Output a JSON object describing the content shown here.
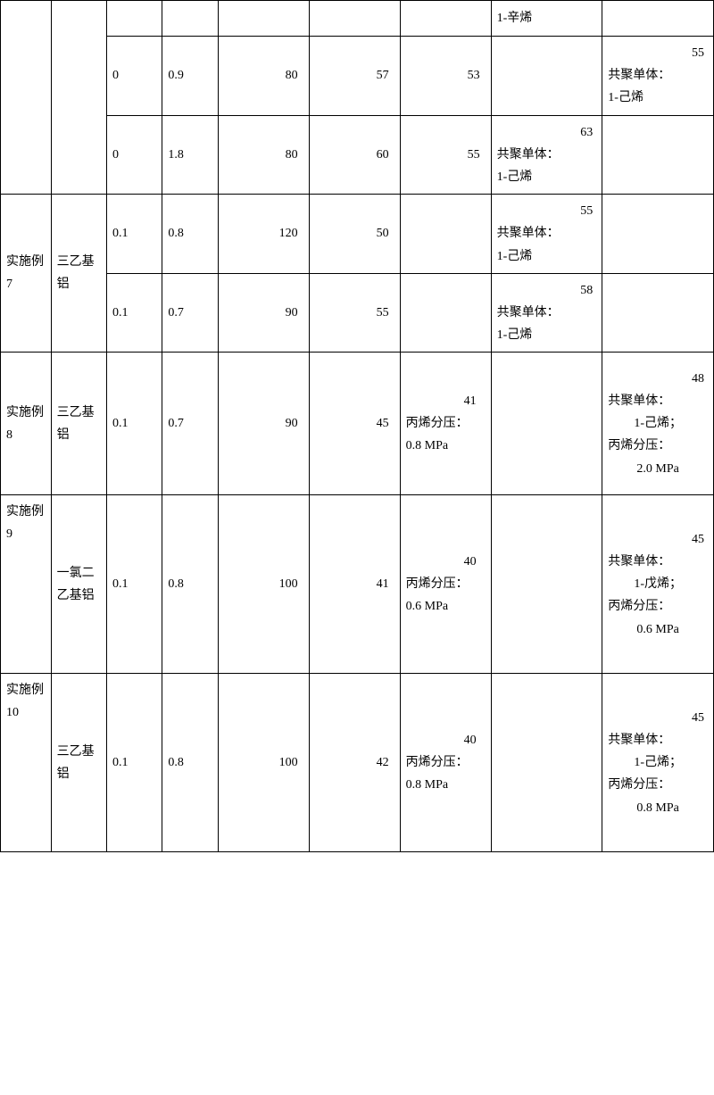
{
  "rows": {
    "r0": {
      "c6_line1": "1-辛烯"
    },
    "r1": {
      "c2": "0",
      "c3": "0.9",
      "c4": "80",
      "c5": "57",
      "c6": "53",
      "c8_num": "55",
      "c8_lbl": "共聚单体：",
      "c8_val": "1-己烯"
    },
    "r2": {
      "c2": "0",
      "c3": "1.8",
      "c4": "80",
      "c5": "60",
      "c6": "55",
      "c7_num": "63",
      "c7_lbl": "共聚单体：",
      "c7_val": "1-己烯"
    },
    "r3": {
      "label": "实施例 7",
      "cocat": "三乙基铝",
      "a": {
        "c2": "0.1",
        "c3": "0.8",
        "c4": "120",
        "c5": "50",
        "c7_num": "55",
        "c7_lbl": "共聚单体：",
        "c7_val": "1-己烯"
      },
      "b": {
        "c2": "0.1",
        "c3": "0.7",
        "c4": "90",
        "c5": "55",
        "c7_num": "58",
        "c7_lbl": "共聚单体：",
        "c7_val": "1-己烯"
      }
    },
    "r4": {
      "label": "实施例 8",
      "cocat": "三乙基铝",
      "c2": "0.1",
      "c3": "0.7",
      "c4": "90",
      "c5": "45",
      "c6_num": "41",
      "c6_lbl": "丙烯分压：",
      "c6_val": "0.8 MPa",
      "c8_num": "48",
      "c8_lbl1": "共聚单体：",
      "c8_val1": "1-己烯；",
      "c8_lbl2": "丙烯分压：",
      "c8_val2": "2.0 MPa"
    },
    "r5": {
      "label": "实施例 9",
      "cocat": "一氯二乙基铝",
      "c2": "0.1",
      "c3": "0.8",
      "c4": "100",
      "c5": "41",
      "c6_num": "40",
      "c6_lbl": "丙烯分压：",
      "c6_val": "0.6 MPa",
      "c8_num": "45",
      "c8_lbl1": "共聚单体：",
      "c8_val1": "1-戊烯；",
      "c8_lbl2": "丙烯分压：",
      "c8_val2": "0.6 MPa"
    },
    "r6": {
      "label": "实施例 10",
      "cocat": "三乙基铝",
      "c2": "0.1",
      "c3": "0.8",
      "c4": "100",
      "c5": "42",
      "c6_num": "40",
      "c6_lbl": "丙烯分压：",
      "c6_val": "0.8 MPa",
      "c8_num": "45",
      "c8_lbl1": "共聚单体：",
      "c8_val1": "1-己烯；",
      "c8_lbl2": "丙烯分压：",
      "c8_val2": "0.8 MPa"
    }
  }
}
